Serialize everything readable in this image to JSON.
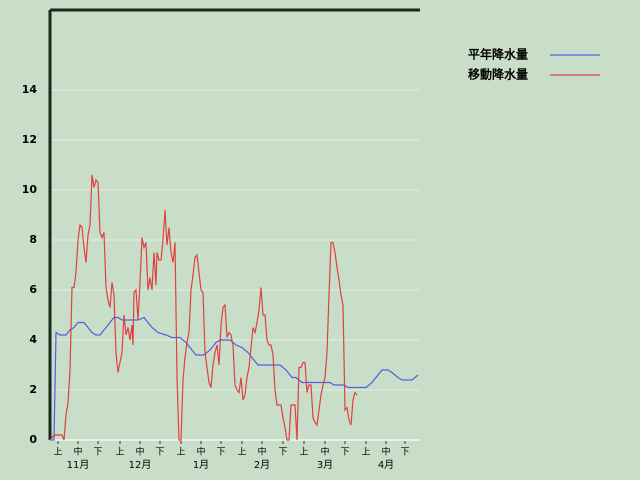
{
  "chart_data": {
    "type": "line",
    "background": "#c8dec8",
    "grid": true,
    "legend": "top-right",
    "xlim": [
      0,
      185
    ],
    "ylim": [
      0,
      17.2
    ],
    "yticks": [
      0,
      2,
      4,
      6,
      8,
      10,
      12,
      14
    ],
    "xticks": [
      {
        "value": 4,
        "label": "上"
      },
      {
        "value": 14,
        "label": "中"
      },
      {
        "value": 24,
        "label": "下"
      },
      {
        "value": 35,
        "label": "上"
      },
      {
        "value": 45,
        "label": "中"
      },
      {
        "value": 55,
        "label": "下"
      },
      {
        "value": 65.5,
        "label": "上"
      },
      {
        "value": 75.5,
        "label": "中"
      },
      {
        "value": 85.5,
        "label": "下"
      },
      {
        "value": 96,
        "label": "上"
      },
      {
        "value": 106,
        "label": "中"
      },
      {
        "value": 116.5,
        "label": "下"
      },
      {
        "value": 127,
        "label": "上"
      },
      {
        "value": 137.5,
        "label": "中"
      },
      {
        "value": 147.5,
        "label": "下"
      },
      {
        "value": 158,
        "label": "上"
      },
      {
        "value": 168,
        "label": "中"
      },
      {
        "value": 177.5,
        "label": "下"
      }
    ],
    "months": [
      {
        "value": 14,
        "label": "11月"
      },
      {
        "value": 45,
        "label": "12月"
      },
      {
        "value": 75.5,
        "label": "1月"
      },
      {
        "value": 106,
        "label": "2月"
      },
      {
        "value": 137.5,
        "label": "3月"
      },
      {
        "value": 168,
        "label": "4月"
      }
    ],
    "series": [
      {
        "name": "平年降水量",
        "color": "#5060e0",
        "x": [
          0,
          2,
          3,
          5,
          8,
          10,
          12,
          14,
          17,
          19,
          21,
          23,
          25,
          27,
          30,
          32,
          34,
          36,
          44,
          47,
          49,
          51,
          54,
          58,
          61,
          65,
          68,
          70,
          73,
          77,
          80,
          83,
          85,
          90,
          93,
          96,
          99,
          102,
          104,
          108,
          115,
          118,
          121,
          123,
          126,
          140,
          142,
          147,
          149,
          158,
          161,
          164,
          166,
          169,
          171,
          174,
          176,
          181,
          184
        ],
        "values": [
          0,
          0,
          4.3,
          4.2,
          4.2,
          4.4,
          4.5,
          4.7,
          4.7,
          4.5,
          4.3,
          4.2,
          4.2,
          4.4,
          4.7,
          4.9,
          4.9,
          4.8,
          4.8,
          4.9,
          4.7,
          4.5,
          4.3,
          4.2,
          4.1,
          4.1,
          3.9,
          3.7,
          3.4,
          3.4,
          3.6,
          3.9,
          4,
          4,
          3.8,
          3.7,
          3.5,
          3.2,
          3,
          3,
          3,
          2.8,
          2.5,
          2.5,
          2.3,
          2.3,
          2.2,
          2.2,
          2.1,
          2.1,
          2.3,
          2.6,
          2.8,
          2.8,
          2.7,
          2.5,
          2.4,
          2.4,
          2.6
        ]
      },
      {
        "name": "移動降水量",
        "color": "#e04040",
        "x": [
          0,
          2,
          6,
          7,
          8,
          9,
          10,
          11,
          12,
          13,
          14,
          15,
          16,
          17,
          18,
          19,
          20,
          21,
          22,
          23,
          24,
          25,
          26,
          27,
          28,
          29,
          30,
          31,
          32,
          33,
          34,
          35,
          36,
          37,
          38,
          39,
          40,
          41,
          41.5,
          42,
          43,
          44,
          45,
          46,
          47,
          48,
          49,
          50,
          51,
          52,
          53,
          53.5,
          54.5,
          55.5,
          56.5,
          57.5,
          58.5,
          59.5,
          60.5,
          61.5,
          62.5,
          63.5,
          64.5,
          65.5,
          66.5,
          67.5,
          68.5,
          69.5,
          70.5,
          71.5,
          72.5,
          73.5,
          74.5,
          75.5,
          76.5,
          77.5,
          78.5,
          79.5,
          80.5,
          81.5,
          82.5,
          83.5,
          84.5,
          85.5,
          86.5,
          87.5,
          88.5,
          89.5,
          90.5,
          91.5,
          92.5,
          93.5,
          94.5,
          95.5,
          96.5,
          97.5,
          98.5,
          99.5,
          100.5,
          101.5,
          102.5,
          103.5,
          104.5,
          105.5,
          106.5,
          107.5,
          108.5,
          109.5,
          110.5,
          111.5,
          112.5,
          113.5,
          114.5,
          115.5,
          116.5,
          117.5,
          118.5,
          119.5,
          120.5,
          121.5,
          122.5,
          123.5,
          124.5,
          125.5,
          126.5,
          127.5,
          128.5,
          129.5,
          130.5,
          131.5,
          132.5,
          133.5,
          134.5,
          135.5,
          136.5,
          137.5,
          138.5,
          139.5,
          140.5,
          141.5,
          142.5,
          143.5,
          144.5,
          145.5,
          146.5,
          147.5,
          148.5,
          149.5,
          150.5,
          151.5,
          152.5,
          153.5
        ],
        "values": [
          0,
          0.2,
          0.2,
          0,
          1,
          1.5,
          2.8,
          6.1,
          6.1,
          6.7,
          8,
          8.6,
          8.5,
          7.7,
          7.1,
          8.2,
          8.6,
          10.6,
          10.1,
          10.4,
          10.3,
          8.3,
          8.1,
          8.3,
          6.1,
          5.6,
          5.3,
          6.3,
          5.8,
          3.5,
          2.7,
          3.1,
          3.5,
          5,
          4.2,
          4.5,
          4,
          4.6,
          3.8,
          5.9,
          6,
          4.8,
          6.3,
          8.1,
          7.7,
          7.9,
          6,
          6.5,
          6,
          7.5,
          6.2,
          7.5,
          7.2,
          7.2,
          8,
          9.2,
          7.8,
          8.5,
          7.5,
          7.1,
          7.9,
          2.5,
          0,
          0,
          2.4,
          3.3,
          3.9,
          4.3,
          6,
          6.6,
          7.3,
          7.4,
          6.7,
          6,
          5.9,
          3.5,
          2.9,
          2.3,
          2.1,
          3,
          3.5,
          3.8,
          3,
          4.6,
          5.3,
          5.4,
          4.1,
          4.3,
          4.2,
          3.8,
          2.2,
          2,
          1.9,
          2.5,
          1.6,
          1.8,
          2.5,
          2.9,
          3.7,
          4.5,
          4.3,
          4.7,
          5.2,
          6.1,
          5,
          5,
          4,
          3.8,
          3.8,
          3.4,
          2,
          1.4,
          1.4,
          1.4,
          0.9,
          0.5,
          0,
          0,
          1.4,
          1.4,
          1.4,
          0,
          2.9,
          2.9,
          3.1,
          3.1,
          1.9,
          2.2,
          2.2,
          0.9,
          0.7,
          0.6,
          1.2,
          1.8,
          2.2,
          2.5,
          3.5,
          5.8,
          7.9,
          7.9,
          7.5,
          6.9,
          6.4,
          5.8,
          5.4,
          1.2,
          1.3,
          0.8,
          0.6,
          1.6,
          1.9,
          1.8
        ]
      }
    ]
  }
}
